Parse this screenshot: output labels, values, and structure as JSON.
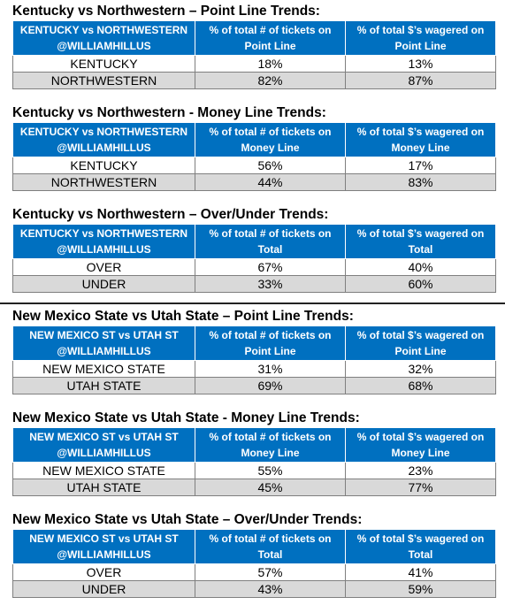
{
  "sections": [
    {
      "title": "Kentucky vs Northwestern – Point Line Trends:",
      "headers": [
        "KENTUCKY vs NORTHWESTERN @WILLIAMHILLUS",
        "% of total # of tickets on Point Line",
        "% of total $’s wagered on Point Line"
      ],
      "rows": [
        [
          "KENTUCKY",
          "18%",
          "13%"
        ],
        [
          "NORTHWESTERN",
          "82%",
          "87%"
        ]
      ]
    },
    {
      "title": "Kentucky vs Northwestern - Money Line Trends:",
      "headers": [
        "KENTUCKY vs NORTHWESTERN @WILLIAMHILLUS",
        "% of total # of tickets on Money Line",
        "% of total $’s wagered on Money Line"
      ],
      "rows": [
        [
          "KENTUCKY",
          "56%",
          "17%"
        ],
        [
          "NORTHWESTERN",
          "44%",
          "83%"
        ]
      ]
    },
    {
      "title": "Kentucky vs Northwestern – Over/Under Trends:",
      "headers": [
        "KENTUCKY vs NORTHWESTERN @WILLIAMHILLUS",
        "% of total # of tickets on Total",
        "% of total $’s wagered on Total"
      ],
      "rows": [
        [
          "OVER",
          "67%",
          "40%"
        ],
        [
          "UNDER",
          "33%",
          "60%"
        ]
      ]
    },
    {
      "title": "New Mexico State vs Utah State – Point Line Trends:",
      "headers": [
        "NEW MEXICO ST vs UTAH ST @WILLIAMHILLUS",
        "% of total # of tickets on Point Line",
        "% of total $’s wagered on Point Line"
      ],
      "rows": [
        [
          "NEW MEXICO STATE",
          "31%",
          "32%"
        ],
        [
          "UTAH STATE",
          "69%",
          "68%"
        ]
      ]
    },
    {
      "title": "New Mexico State vs Utah State - Money Line Trends:",
      "headers": [
        "NEW MEXICO ST vs UTAH ST @WILLIAMHILLUS",
        "% of total # of tickets on Money Line",
        "% of total $’s wagered on Money Line"
      ],
      "rows": [
        [
          "NEW MEXICO STATE",
          "55%",
          "23%"
        ],
        [
          "UTAH STATE",
          "45%",
          "77%"
        ]
      ]
    },
    {
      "title": "New Mexico State vs Utah State – Over/Under Trends:",
      "headers": [
        "NEW MEXICO ST vs UTAH ST @WILLIAMHILLUS",
        "% of total # of tickets on Total",
        "% of total $’s wagered on Total"
      ],
      "rows": [
        [
          "OVER",
          "57%",
          "41%"
        ],
        [
          "UNDER",
          "43%",
          "59%"
        ]
      ]
    }
  ],
  "colors": {
    "header_bg": "#0070c0",
    "header_text": "#ffffff",
    "alt_row": "#d9d9d9"
  }
}
